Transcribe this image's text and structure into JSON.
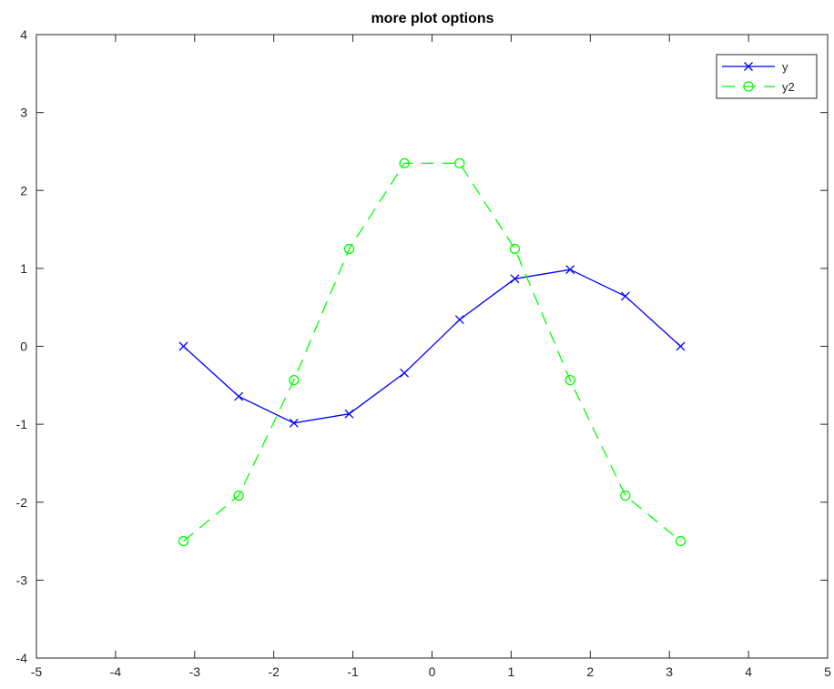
{
  "chart_data": {
    "type": "line",
    "title": "more plot options",
    "xlabel": "",
    "ylabel": "",
    "xlim": [
      -5,
      5
    ],
    "ylim": [
      -4,
      4
    ],
    "xticks": [
      -5,
      -4,
      -3,
      -2,
      -1,
      0,
      1,
      2,
      3,
      4,
      5
    ],
    "yticks": [
      -4,
      -3,
      -2,
      -1,
      0,
      1,
      2,
      3,
      4
    ],
    "grid": false,
    "legend_position": "top-right",
    "series": [
      {
        "name": "y",
        "color": "#0000ff",
        "line_style": "solid",
        "marker": "x",
        "x": [
          -3.1416,
          -2.4435,
          -1.7453,
          -1.0472,
          -0.3491,
          0.3491,
          1.0472,
          1.7453,
          2.4435,
          3.1416
        ],
        "values": [
          0,
          -0.643,
          -0.985,
          -0.866,
          -0.342,
          0.342,
          0.866,
          0.985,
          0.643,
          0
        ]
      },
      {
        "name": "y2",
        "color": "#00ff00",
        "line_style": "dashed",
        "marker": "o",
        "x": [
          -3.1416,
          -2.4435,
          -1.7453,
          -1.0472,
          -0.3491,
          0.3491,
          1.0472,
          1.7453,
          2.4435,
          3.1416
        ],
        "values": [
          -2.5,
          -1.915,
          -0.434,
          1.25,
          2.349,
          2.349,
          1.25,
          -0.434,
          -1.915,
          -2.5
        ]
      }
    ]
  }
}
